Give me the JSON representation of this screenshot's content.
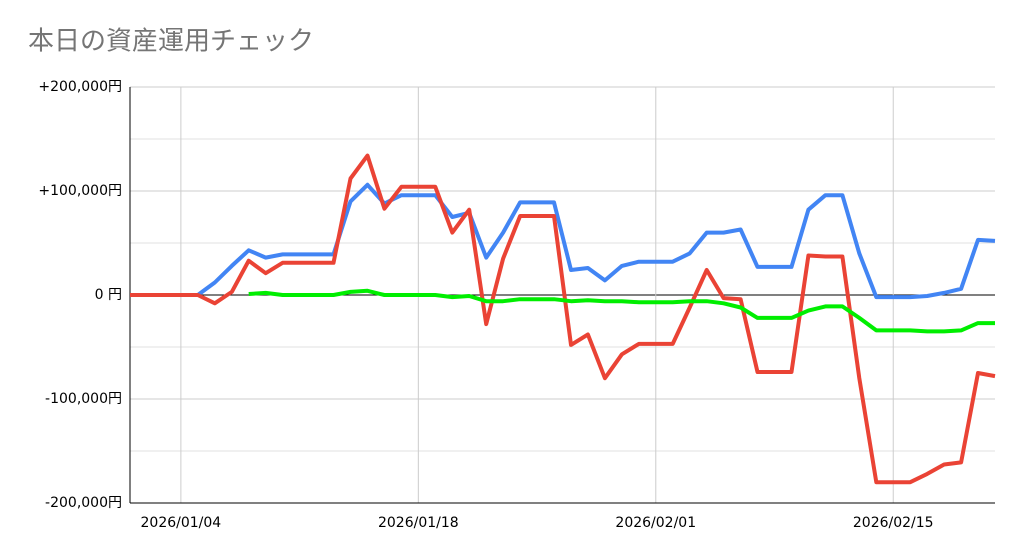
{
  "chart_data": {
    "type": "line",
    "title": "本日の資産運用チェック",
    "x": [
      "2026/01/01",
      "2026/01/02",
      "2026/01/03",
      "2026/01/04",
      "2026/01/05",
      "2026/01/06",
      "2026/01/07",
      "2026/01/08",
      "2026/01/09",
      "2026/01/10",
      "2026/01/11",
      "2026/01/12",
      "2026/01/13",
      "2026/01/14",
      "2026/01/15",
      "2026/01/16",
      "2026/01/17",
      "2026/01/18",
      "2026/01/19",
      "2026/01/20",
      "2026/01/21",
      "2026/01/22",
      "2026/01/23",
      "2026/01/24",
      "2026/01/25",
      "2026/01/26",
      "2026/01/27",
      "2026/01/28",
      "2026/01/29",
      "2026/01/30",
      "2026/01/31",
      "2026/02/01",
      "2026/02/02",
      "2026/02/03",
      "2026/02/04",
      "2026/02/05",
      "2026/02/06",
      "2026/02/07",
      "2026/02/08",
      "2026/02/09",
      "2026/02/10",
      "2026/02/11",
      "2026/02/12",
      "2026/02/13",
      "2026/02/14",
      "2026/02/15",
      "2026/02/16",
      "2026/02/17",
      "2026/02/18",
      "2026/02/19",
      "2026/02/20",
      "2026/02/21"
    ],
    "series": [
      {
        "color": "#4285f4",
        "values": [
          0,
          0,
          0,
          0,
          0,
          12000,
          28000,
          43000,
          36000,
          39000,
          39000,
          39000,
          39000,
          90000,
          106000,
          88000,
          96000,
          96000,
          96000,
          75000,
          79000,
          36000,
          60000,
          89000,
          89000,
          89000,
          24000,
          26000,
          14000,
          28000,
          32000,
          32000,
          32000,
          40000,
          60000,
          60000,
          63000,
          27000,
          27000,
          27000,
          82000,
          96000,
          96000,
          40000,
          -2000,
          -2000,
          -2000,
          -1000,
          2000,
          6000,
          53000,
          52000
        ]
      },
      {
        "color": "#ea4335",
        "values": [
          0,
          0,
          0,
          0,
          0,
          -8000,
          3000,
          33000,
          21000,
          31000,
          31000,
          31000,
          31000,
          112000,
          134000,
          83000,
          104000,
          104000,
          104000,
          60000,
          82000,
          -28000,
          35000,
          76000,
          76000,
          76000,
          -48000,
          -38000,
          -80000,
          -57000,
          -47000,
          -47000,
          -47000,
          -12000,
          24000,
          -3000,
          -4000,
          -74000,
          -74000,
          -74000,
          38000,
          37000,
          37000,
          -80000,
          -180000,
          -180000,
          -180000,
          -172000,
          -163000,
          -161000,
          -75000,
          -78000
        ]
      },
      {
        "color": "#00ee00",
        "values": [
          null,
          null,
          null,
          null,
          null,
          null,
          null,
          1000,
          2000,
          0,
          0,
          0,
          0,
          3000,
          4000,
          0,
          0,
          0,
          0,
          -2000,
          -1000,
          -6000,
          -6000,
          -4000,
          -4000,
          -4000,
          -6000,
          -5000,
          -6000,
          -6000,
          -7000,
          -7000,
          -7000,
          -6000,
          -6000,
          -8000,
          -12000,
          -22000,
          -22000,
          -22000,
          -15000,
          -11000,
          -11000,
          -22000,
          -34000,
          -34000,
          -34000,
          -35000,
          -35000,
          -34000,
          -27000,
          -27000
        ]
      }
    ],
    "xlim": [
      "2026/01/01",
      "2026/02/21"
    ],
    "xticks": [
      "2026/01/04",
      "2026/01/18",
      "2026/02/01",
      "2026/02/15"
    ],
    "ylim": [
      -200000,
      200000
    ],
    "yticks": [
      {
        "value": -200000,
        "label": "-200,000円"
      },
      {
        "value": -100000,
        "label": "-100,000円"
      },
      {
        "value": 0,
        "label": "0 円"
      },
      {
        "value": 100000,
        "label": "+100,000円"
      },
      {
        "value": 200000,
        "label": "+200,000円"
      }
    ],
    "minor_yticks": [
      -150000,
      -50000,
      50000,
      150000
    ],
    "grid": true
  }
}
